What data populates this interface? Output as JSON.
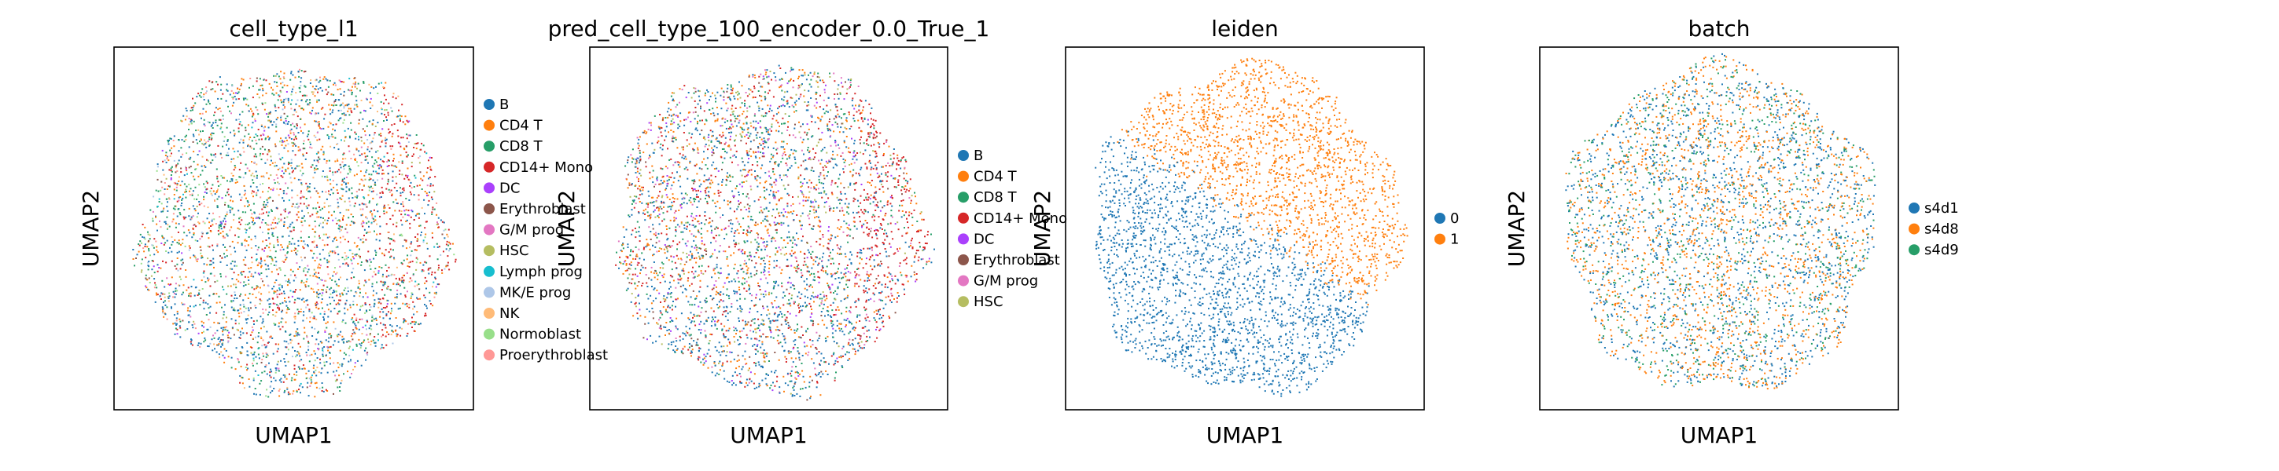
{
  "chart_data": [
    {
      "type": "scatter",
      "title": "cell_type_l1",
      "xlabel": "UMAP1",
      "ylabel": "UMAP2",
      "grid": false,
      "legend_placement": "right",
      "categories": [
        {
          "name": "B",
          "color": "#1f77b4"
        },
        {
          "name": "CD4 T",
          "color": "#ff7f0e"
        },
        {
          "name": "CD8 T",
          "color": "#279e68"
        },
        {
          "name": "CD14+ Mono",
          "color": "#d62728"
        },
        {
          "name": "DC",
          "color": "#aa40fc"
        },
        {
          "name": "Erythroblast",
          "color": "#8c564b"
        },
        {
          "name": "G/M prog",
          "color": "#e377c2"
        },
        {
          "name": "HSC",
          "color": "#b5bd61"
        },
        {
          "name": "Lymph prog",
          "color": "#17becf"
        },
        {
          "name": "MK/E prog",
          "color": "#aec7e8"
        },
        {
          "name": "NK",
          "color": "#ffbb78"
        },
        {
          "name": "Normoblast",
          "color": "#98df8a"
        },
        {
          "name": "Proerythroblast",
          "color": "#ff9896"
        }
      ]
    },
    {
      "type": "scatter",
      "title": "pred_cell_type_100_encoder_0.0_True_1",
      "xlabel": "UMAP1",
      "ylabel": "UMAP2",
      "grid": false,
      "legend_placement": "right",
      "categories": [
        {
          "name": "B",
          "color": "#1f77b4"
        },
        {
          "name": "CD4 T",
          "color": "#ff7f0e"
        },
        {
          "name": "CD8 T",
          "color": "#279e68"
        },
        {
          "name": "CD14+ Mono",
          "color": "#d62728"
        },
        {
          "name": "DC",
          "color": "#aa40fc"
        },
        {
          "name": "Erythroblast",
          "color": "#8c564b"
        },
        {
          "name": "G/M prog",
          "color": "#e377c2"
        },
        {
          "name": "HSC",
          "color": "#b5bd61"
        }
      ]
    },
    {
      "type": "scatter",
      "title": "leiden",
      "xlabel": "UMAP1",
      "ylabel": "UMAP2",
      "grid": false,
      "legend_placement": "right",
      "categories": [
        {
          "name": "0",
          "color": "#1f77b4"
        },
        {
          "name": "1",
          "color": "#ff7f0e"
        }
      ]
    },
    {
      "type": "scatter",
      "title": "batch",
      "xlabel": "UMAP1",
      "ylabel": "UMAP2",
      "grid": false,
      "legend_placement": "right",
      "categories": [
        {
          "name": "s4d1",
          "color": "#1f77b4"
        },
        {
          "name": "s4d8",
          "color": "#ff7f0e"
        },
        {
          "name": "s4d9",
          "color": "#279e68"
        }
      ]
    }
  ]
}
